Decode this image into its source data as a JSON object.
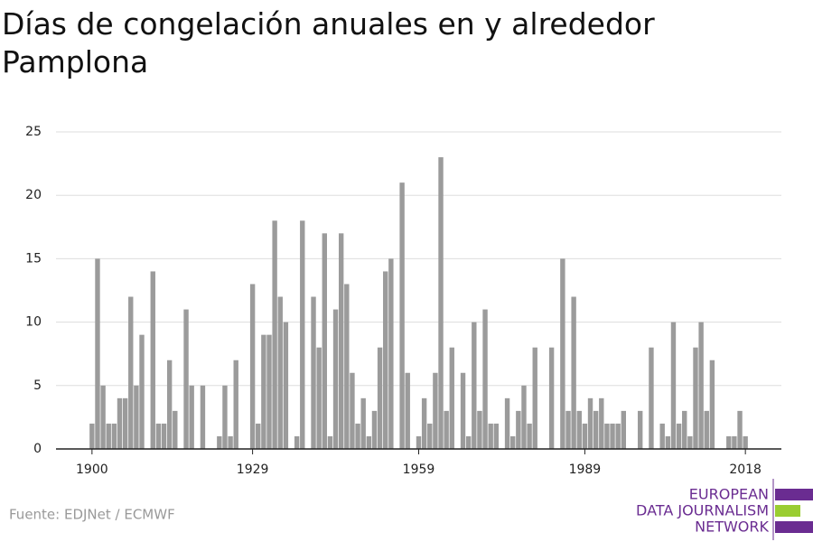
{
  "chart_data": {
    "type": "bar",
    "title": "Días de congelación anuales en y alrededor Pamplona",
    "source": "Fuente: EDJNet / ECMWF",
    "logo": [
      "EUROPEAN",
      "DATA JOURNALISM",
      "NETWORK"
    ],
    "x": [
      1900,
      1901,
      1902,
      1903,
      1904,
      1905,
      1906,
      1907,
      1908,
      1909,
      1910,
      1911,
      1912,
      1913,
      1914,
      1915,
      1916,
      1917,
      1918,
      1919,
      1920,
      1921,
      1922,
      1923,
      1924,
      1925,
      1926,
      1927,
      1928,
      1929,
      1930,
      1931,
      1932,
      1933,
      1934,
      1935,
      1936,
      1937,
      1938,
      1939,
      1940,
      1941,
      1942,
      1943,
      1944,
      1945,
      1946,
      1947,
      1948,
      1949,
      1950,
      1951,
      1952,
      1953,
      1954,
      1955,
      1956,
      1957,
      1958,
      1959,
      1960,
      1961,
      1962,
      1963,
      1964,
      1965,
      1966,
      1967,
      1968,
      1969,
      1970,
      1971,
      1972,
      1973,
      1974,
      1975,
      1976,
      1977,
      1978,
      1979,
      1980,
      1981,
      1982,
      1983,
      1984,
      1985,
      1986,
      1987,
      1988,
      1989,
      1990,
      1991,
      1992,
      1993,
      1994,
      1995,
      1996,
      1997,
      1998,
      1999,
      2000,
      2001,
      2002,
      2003,
      2004,
      2005,
      2006,
      2007,
      2008,
      2009,
      2010,
      2011,
      2012,
      2013,
      2014,
      2015,
      2016,
      2017,
      2018
    ],
    "values": [
      2,
      15,
      5,
      2,
      2,
      4,
      4,
      12,
      5,
      9,
      0,
      14,
      2,
      2,
      7,
      3,
      0,
      11,
      5,
      0,
      5,
      0,
      0,
      1,
      5,
      1,
      7,
      0,
      0,
      13,
      2,
      9,
      9,
      18,
      12,
      10,
      0,
      1,
      18,
      0,
      12,
      8,
      17,
      1,
      11,
      17,
      13,
      6,
      2,
      4,
      1,
      3,
      8,
      14,
      15,
      0,
      21,
      6,
      0,
      1,
      4,
      2,
      6,
      23,
      3,
      8,
      0,
      6,
      1,
      10,
      3,
      11,
      2,
      2,
      0,
      4,
      1,
      3,
      5,
      2,
      8,
      0,
      0,
      8,
      0,
      15,
      3,
      12,
      3,
      2,
      4,
      3,
      4,
      2,
      2,
      2,
      3,
      0,
      0,
      3,
      0,
      8,
      0,
      2,
      1,
      10,
      2,
      3,
      1,
      8,
      10,
      3,
      7,
      0,
      0,
      1,
      1,
      3,
      1
    ],
    "color": "#9b9b9b",
    "xlim": [
      1893.5,
      2024.5
    ],
    "xticks": [
      1900,
      1929,
      1959,
      1989,
      2018
    ],
    "ylim": [
      0,
      25
    ],
    "yticks": [
      0,
      5,
      10,
      15,
      20,
      25
    ],
    "grid": true
  }
}
